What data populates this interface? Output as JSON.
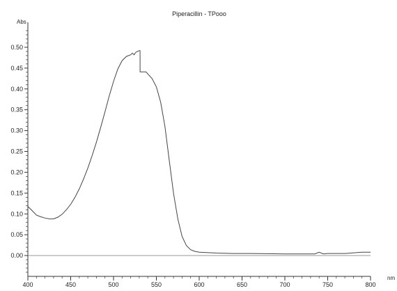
{
  "chart_data": {
    "type": "line",
    "title": "Piperacillin - TPooo",
    "xlabel": "nm",
    "ylabel": "Abs",
    "xlim": [
      400,
      800
    ],
    "ylim": [
      -0.05,
      0.55
    ],
    "x_ticks": [
      400,
      450,
      500,
      550,
      600,
      650,
      700,
      750,
      800
    ],
    "y_ticks": [
      0.0,
      0.05,
      0.1,
      0.15,
      0.2,
      0.25,
      0.3,
      0.35,
      0.4,
      0.45,
      0.5
    ],
    "y_tick_labels": [
      "0.00",
      "0.05",
      "0.10",
      "0.15",
      "0.20",
      "0.25",
      "0.30",
      "0.35",
      "0.40",
      "0.45",
      "0.50"
    ],
    "grid": false,
    "series": [
      {
        "x": [
          400,
          405,
          410,
          415,
          420,
          425,
          430,
          435,
          440,
          445,
          450,
          455,
          460,
          465,
          470,
          475,
          480,
          485,
          490,
          495,
          500,
          505,
          510,
          515,
          520,
          522,
          524,
          526,
          528,
          530,
          531,
          531,
          535,
          538,
          540,
          545,
          550,
          555,
          560,
          565,
          570,
          575,
          580,
          585,
          590,
          595,
          600,
          610,
          620,
          640,
          660,
          700,
          735,
          740,
          745,
          750,
          770,
          790,
          800
        ],
        "y": [
          0.118,
          0.108,
          0.097,
          0.093,
          0.09,
          0.088,
          0.088,
          0.092,
          0.099,
          0.11,
          0.123,
          0.14,
          0.16,
          0.184,
          0.21,
          0.24,
          0.272,
          0.308,
          0.345,
          0.383,
          0.418,
          0.448,
          0.468,
          0.478,
          0.482,
          0.486,
          0.482,
          0.488,
          0.49,
          0.492,
          0.492,
          0.441,
          0.441,
          0.441,
          0.436,
          0.425,
          0.405,
          0.368,
          0.31,
          0.23,
          0.15,
          0.088,
          0.046,
          0.024,
          0.014,
          0.01,
          0.008,
          0.007,
          0.006,
          0.005,
          0.005,
          0.004,
          0.004,
          0.008,
          0.004,
          0.005,
          0.005,
          0.008,
          0.008
        ]
      },
      {
        "x": [
          400,
          800
        ],
        "y": [
          0.0,
          0.0
        ]
      }
    ]
  }
}
